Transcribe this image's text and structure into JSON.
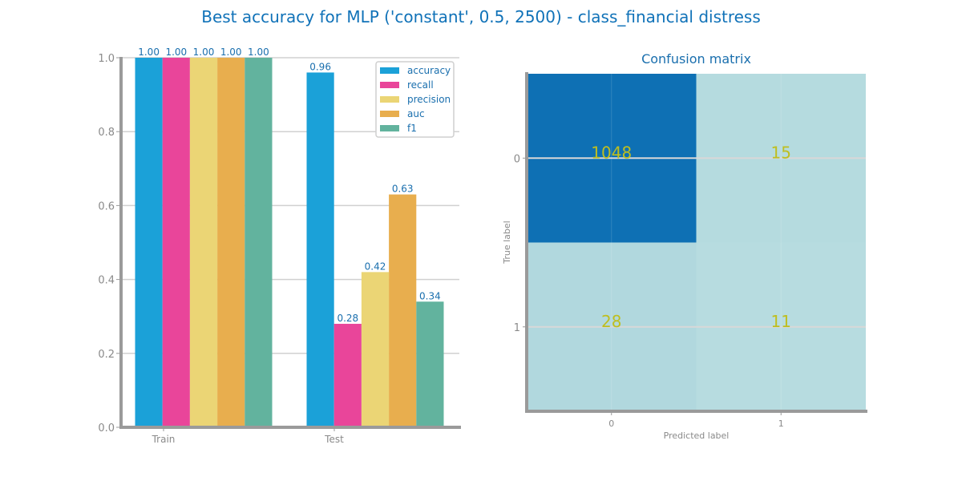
{
  "figure": {
    "title": "Best accuracy for MLP ('constant', 0.5, 2500) - class_financial distress"
  },
  "chart_data": [
    {
      "type": "bar",
      "title": "",
      "xlabel": "",
      "ylabel": "",
      "ylim": [
        0,
        1
      ],
      "yticks": [
        "0.0",
        "0.2",
        "0.4",
        "0.6",
        "0.8",
        "1.0"
      ],
      "categories": [
        "Train",
        "Test"
      ],
      "grid": "horizontal",
      "legend_position": "top-right",
      "series": [
        {
          "name": "accuracy",
          "values": [
            1.0,
            0.96
          ],
          "labels": [
            "1.00",
            "0.96"
          ],
          "color": "#1ba1d8"
        },
        {
          "name": "recall",
          "values": [
            1.0,
            0.28
          ],
          "labels": [
            "1.00",
            "0.28"
          ],
          "color": "#e9459a"
        },
        {
          "name": "precision",
          "values": [
            1.0,
            0.42
          ],
          "labels": [
            "1.00",
            "0.42"
          ],
          "color": "#ebd575"
        },
        {
          "name": "auc",
          "values": [
            1.0,
            0.63
          ],
          "labels": [
            "1.00",
            "0.63"
          ],
          "color": "#e8ae4e"
        },
        {
          "name": "f1",
          "values": [
            1.0,
            0.34
          ],
          "labels": [
            "1.00",
            "0.34"
          ],
          "color": "#62b39e"
        }
      ]
    },
    {
      "type": "heatmap",
      "title": "Confusion matrix",
      "xlabel": "Predicted label",
      "ylabel": "True label",
      "x_ticks": [
        "0",
        "1"
      ],
      "y_ticks": [
        "0",
        "1"
      ],
      "matrix": [
        [
          1048,
          15
        ],
        [
          28,
          11
        ]
      ],
      "colors": {
        "high": "#0e70b4",
        "low": "#b7dce0",
        "text": "#bfbe1f"
      }
    }
  ]
}
